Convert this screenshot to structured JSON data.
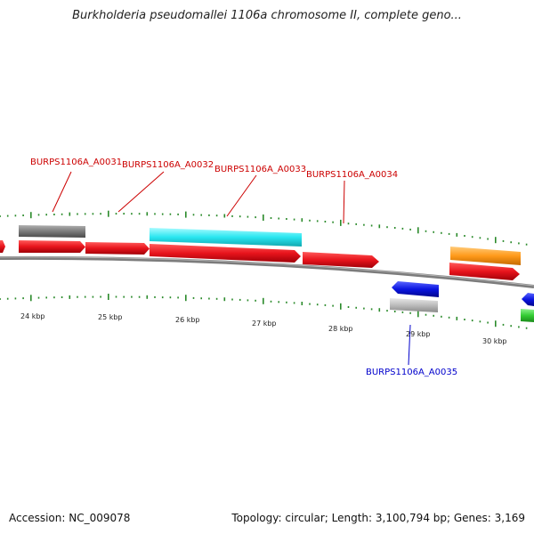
{
  "title": "Burkholderia pseudomallei 1106a chromosome II, complete geno...",
  "footer": {
    "accession": "Accession: NC_009078",
    "topology": "Topology: circular; Length: 3,100,794 bp; Genes: 3,169"
  },
  "gene_labels": [
    {
      "text": "BURPS1106A_A0031",
      "color": "#cc0000"
    },
    {
      "text": "BURPS1106A_A0032",
      "color": "#cc0000"
    },
    {
      "text": "BURPS1106A_A0033",
      "color": "#cc0000"
    },
    {
      "text": "BURPS1106A_A0034",
      "color": "#cc0000"
    },
    {
      "text": "BURPS1106A_A0035",
      "color": "#0000cc"
    }
  ],
  "scale_labels": [
    "24 kbp",
    "25 kbp",
    "26 kbp",
    "27 kbp",
    "28 kbp",
    "29 kbp",
    "30 kbp"
  ],
  "colors": {
    "backbone": "#888888",
    "tick": "#2a8a2a",
    "red_gene": "#e8141c",
    "cyan_gene": "#29e6f0",
    "gray_gene": "#7a7a7a",
    "orange_gene": "#ff9a1a",
    "blue_gene": "#0a14e0",
    "lightgray_gene": "#bcbcbc",
    "green_gene": "#33cc33"
  }
}
